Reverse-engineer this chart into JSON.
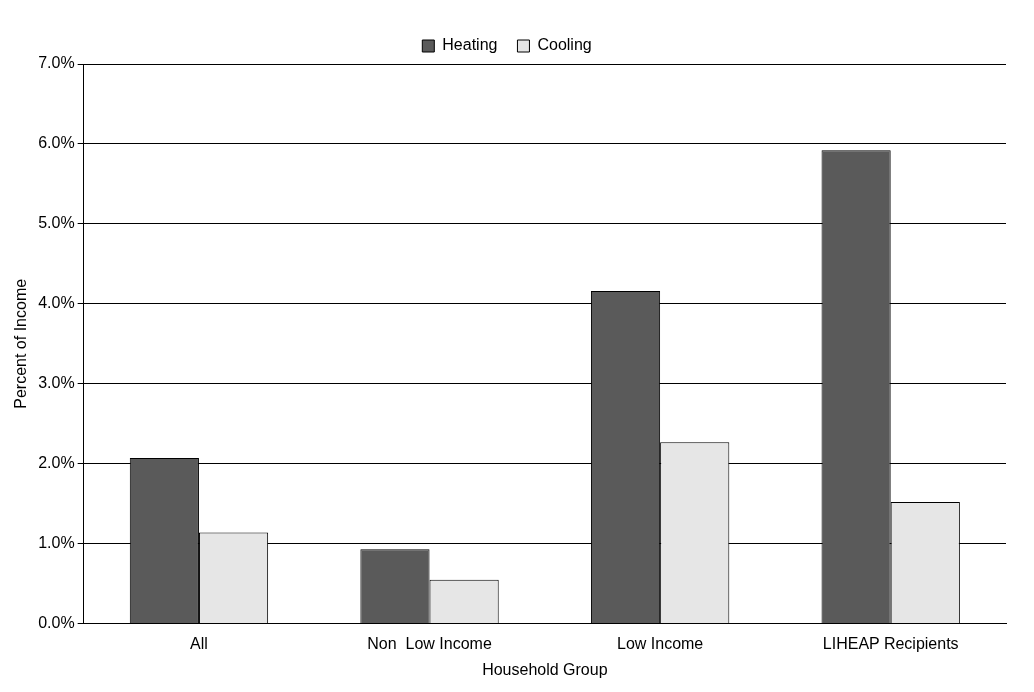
{
  "chart_data": {
    "type": "bar",
    "categories": [
      "All",
      "Non  Low Income",
      "Low Income",
      "LIHEAP Recipients"
    ],
    "series": [
      {
        "name": "Heating",
        "color": "#5a5a5a",
        "values": [
          2.07,
          0.93,
          4.16,
          5.92
        ]
      },
      {
        "name": "Cooling",
        "color": "#e6e6e6",
        "values": [
          1.14,
          0.55,
          2.27,
          1.52
        ]
      }
    ],
    "xlabel": "Household Group",
    "ylabel": "Percent of Income",
    "ylim": [
      0,
      7
    ],
    "yticks": [
      {
        "value": 0,
        "label": "0.0%"
      },
      {
        "value": 1,
        "label": "1.0%"
      },
      {
        "value": 2,
        "label": "2.0%"
      },
      {
        "value": 3,
        "label": "3.0%"
      },
      {
        "value": 4,
        "label": "4.0%"
      },
      {
        "value": 5,
        "label": "5.0%"
      },
      {
        "value": 6,
        "label": "6.0%"
      },
      {
        "value": 7,
        "label": "7.0%"
      }
    ],
    "grid": "y",
    "legend": "top"
  }
}
